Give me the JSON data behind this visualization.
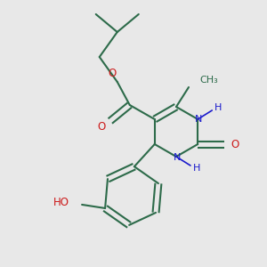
{
  "background_color": "#e8e8e8",
  "bond_color": "#2d6b4a",
  "n_color": "#1a1acc",
  "o_color": "#cc1a1a",
  "linewidth": 1.5,
  "figsize": [
    3.0,
    3.0
  ],
  "dpi": 100,
  "xlim": [
    0,
    300
  ],
  "ylim": [
    0,
    300
  ]
}
